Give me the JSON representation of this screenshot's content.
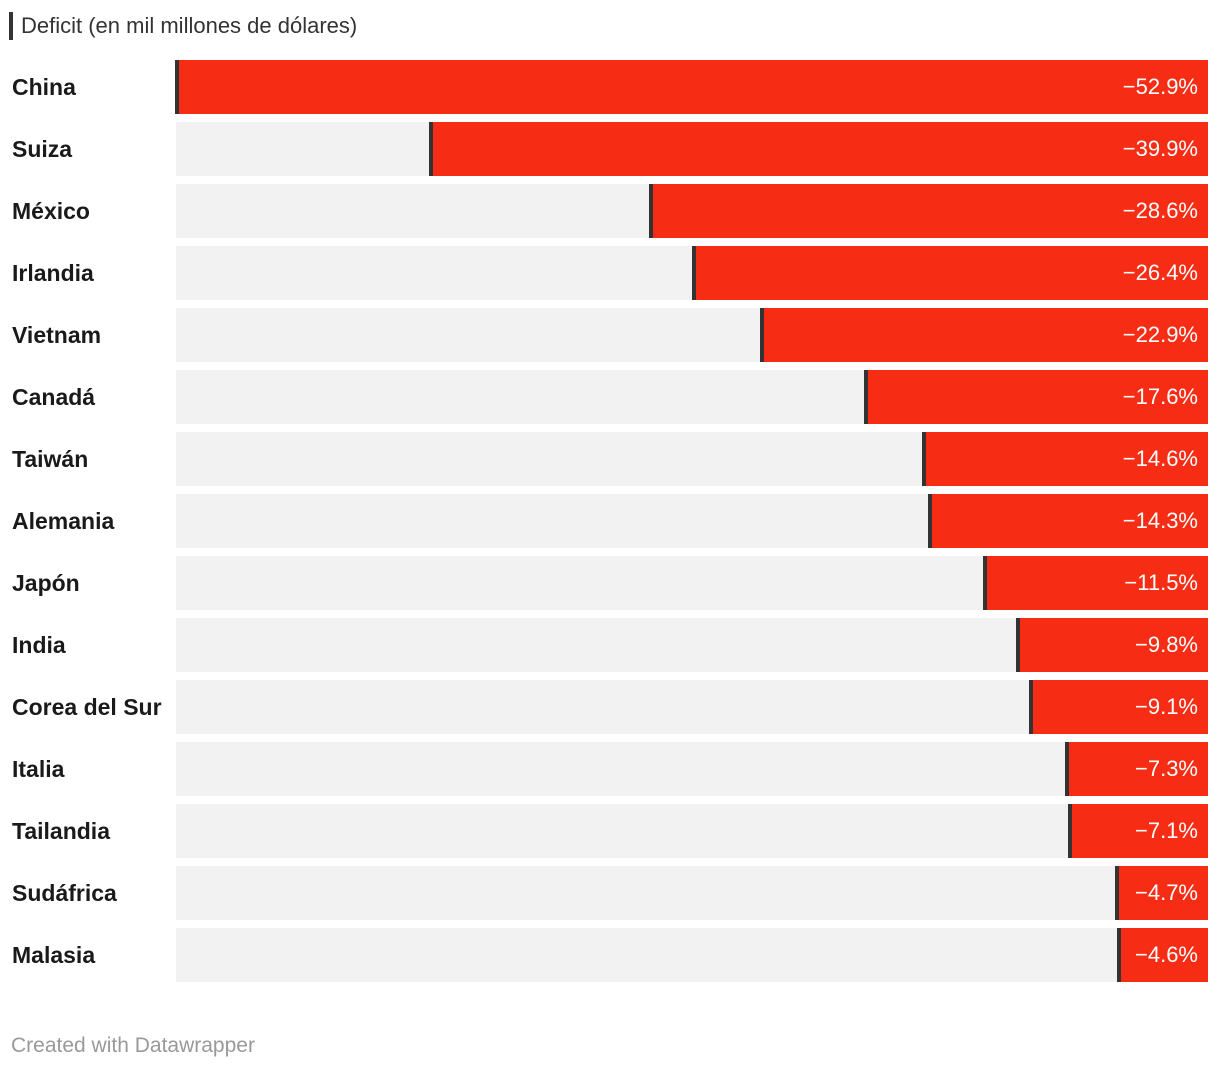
{
  "legend": {
    "label": "Deficit (en mil millones de dólares)"
  },
  "footer": {
    "credit": "Created with Datawrapper"
  },
  "colors": {
    "bar": "#f62d14",
    "background_bar": "#f2f2f2",
    "marker": "#333333"
  },
  "chart_data": {
    "type": "bar",
    "orientation": "horizontal",
    "title": "",
    "series_label": "Deficit (en mil millones de dólares)",
    "categories": [
      "China",
      "Suiza",
      "México",
      "Irlandia",
      "Vietnam",
      "Canadá",
      "Taiwán",
      "Alemania",
      "Japón",
      "India",
      "Corea del Sur",
      "Italia",
      "Tailandia",
      "Sudáfrica",
      "Malasia"
    ],
    "values": [
      -52.9,
      -39.9,
      -28.6,
      -26.4,
      -22.9,
      -17.6,
      -14.6,
      -14.3,
      -11.5,
      -9.8,
      -9.1,
      -7.3,
      -7.1,
      -4.7,
      -4.6
    ],
    "value_labels": [
      "−52.9%",
      "−39.9%",
      "−28.6%",
      "−26.4%",
      "−22.9%",
      "−17.6%",
      "−14.6%",
      "−14.3%",
      "−11.5%",
      "−9.8%",
      "−9.1%",
      "−7.3%",
      "−7.1%",
      "−4.7%",
      "−4.6%"
    ],
    "xlim": [
      -52.9,
      0
    ]
  }
}
